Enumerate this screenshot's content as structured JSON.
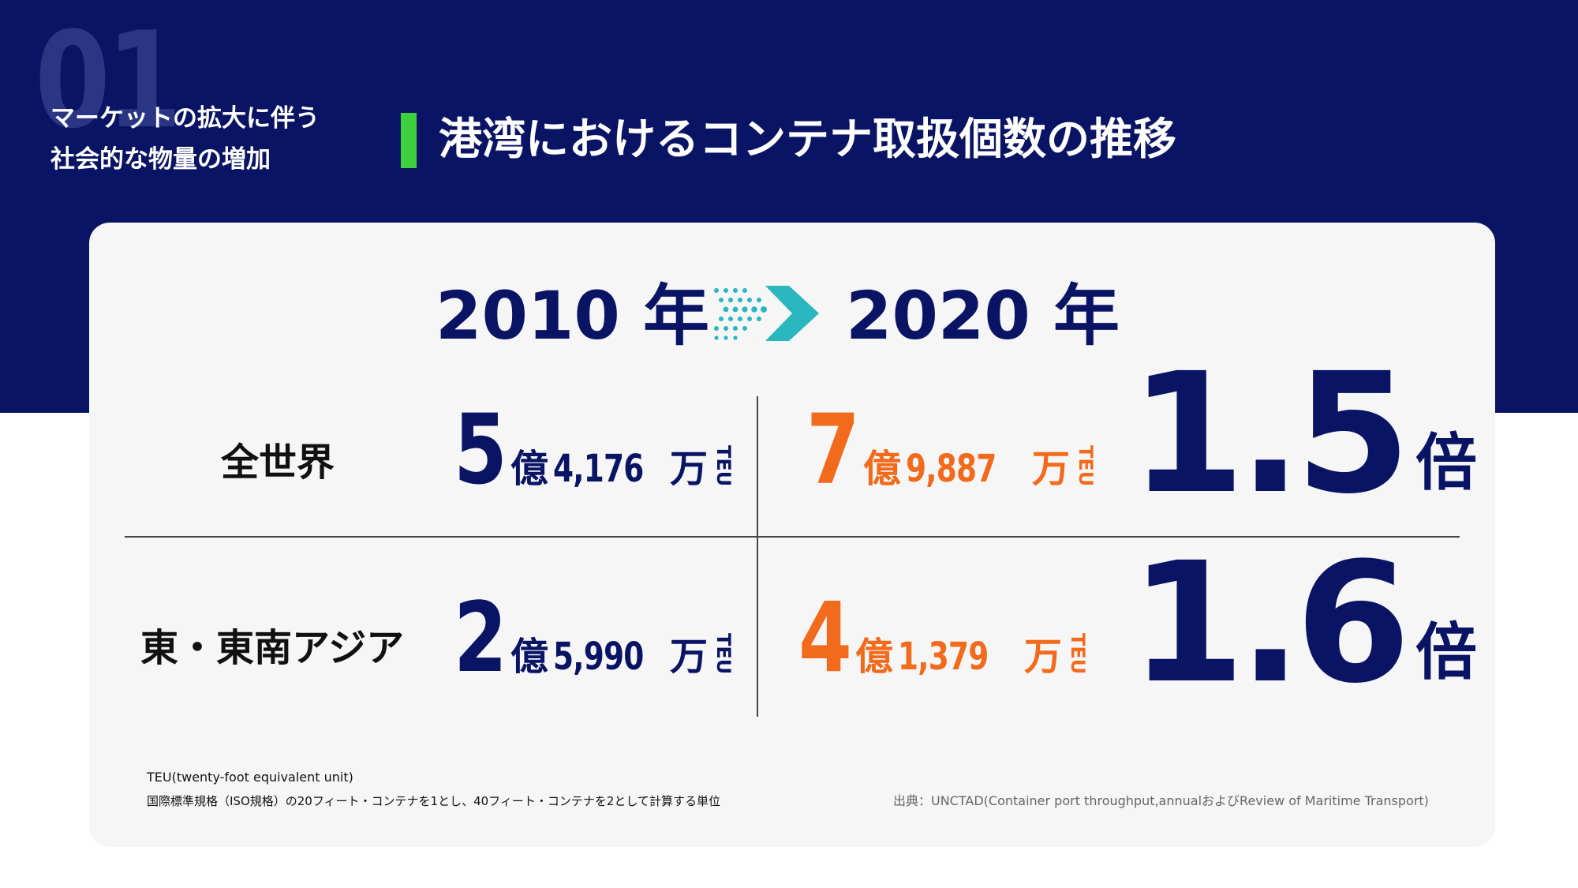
{
  "header": {
    "section_number": "01",
    "section_label_line1": "マーケットの拡大に伴う",
    "section_label_line2": "社会的な物量の増加",
    "title": "港湾におけるコンテナ取扱個数の推移"
  },
  "comparison": {
    "year_from": "2010 年",
    "year_to": "2020 年",
    "arrow_icon": "dotted-chevron-right-icon"
  },
  "rows": [
    {
      "region": "全世界",
      "v2010": {
        "big": "5",
        "oku": "億",
        "num": "4,176",
        "man": "万",
        "unit": "TEU"
      },
      "v2020": {
        "big": "7",
        "oku": "億",
        "num": "9,887",
        "man": "万",
        "unit": "TEU"
      },
      "ratio": "1.5",
      "ratio_unit": "倍"
    },
    {
      "region": "東・東南アジア",
      "v2010": {
        "big": "2",
        "oku": "億",
        "num": "5,990",
        "man": "万",
        "unit": "TEU"
      },
      "v2020": {
        "big": "4",
        "oku": "億",
        "num": "1,379",
        "man": "万",
        "unit": "TEU"
      },
      "ratio": "1.6",
      "ratio_unit": "倍"
    }
  ],
  "footnotes": {
    "line1": "TEU(twenty-foot equivalent unit)",
    "line2": "国際標準規格（ISO規格）の20フィート・コンテナを1とし、40フィート・コンテナを2として計算する単位",
    "source": "出典：UNCTAD(Container port throughput,annualおよびReview of Maritime Transport)"
  },
  "colors": {
    "navy": "#0a1464",
    "accent_green": "#3dd13d",
    "orange": "#f26a1b",
    "teal": "#2ab7c0",
    "card_bg": "#f6f6f6"
  }
}
